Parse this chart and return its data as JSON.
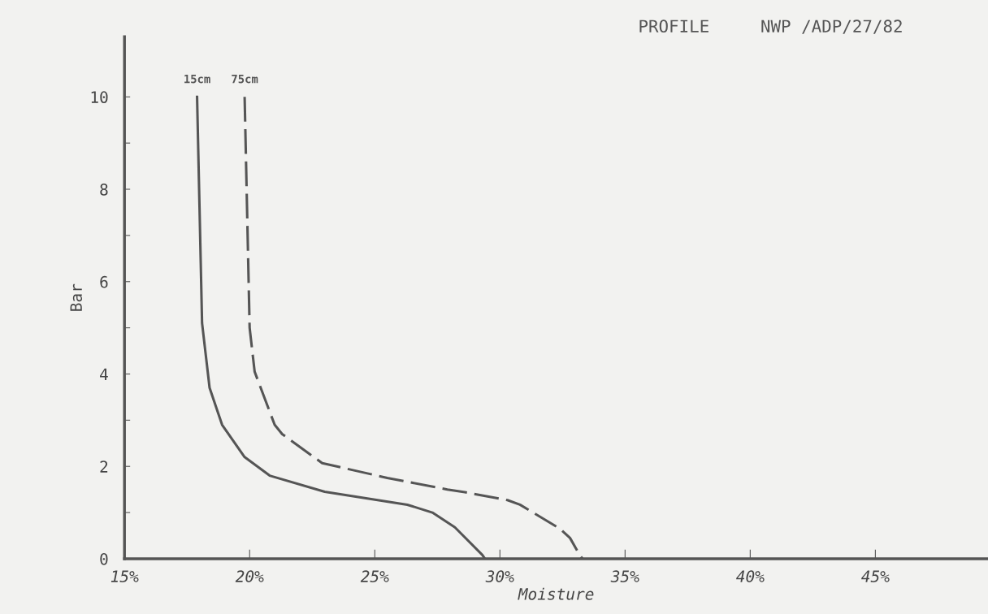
{
  "chart_data": {
    "type": "line",
    "title": "PROFILE     NWP /ADP/27/82",
    "xlabel": "Moisture",
    "ylabel": "Bar",
    "xlim": [
      15,
      49.5
    ],
    "ylim": [
      0,
      11.3
    ],
    "xticks": [
      {
        "value": 15,
        "label": "15%"
      },
      {
        "value": 20,
        "label": "20%"
      },
      {
        "value": 25,
        "label": "25%"
      },
      {
        "value": 30,
        "label": "30%"
      },
      {
        "value": 35,
        "label": "35%"
      },
      {
        "value": 40,
        "label": "40%"
      },
      {
        "value": 45,
        "label": "45%"
      }
    ],
    "yticks": [
      0,
      {
        "value": 1,
        "label": null
      },
      2,
      {
        "value": 3,
        "label": null
      },
      4,
      {
        "value": 5,
        "label": null
      },
      6,
      {
        "value": 7,
        "label": null
      },
      8,
      {
        "value": 9,
        "label": null
      },
      10
    ],
    "grid": false,
    "legend": false,
    "marker": "none",
    "series": [
      {
        "name": "15cm",
        "color": "#555555",
        "line_style": "solid",
        "x": [
          17.9,
          18.1,
          18.4,
          18.9,
          19.8,
          20.8,
          23.0,
          26.3,
          27.3,
          28.2,
          29.3,
          29.4
        ],
        "values": [
          10.0,
          5.1,
          3.7,
          2.9,
          2.2,
          1.8,
          1.45,
          1.17,
          1.0,
          0.68,
          0.08,
          0.0
        ]
      },
      {
        "name": "75cm",
        "color": "#555555",
        "line_style": "dashed",
        "x": [
          19.8,
          20.0,
          20.2,
          21.0,
          21.3,
          22.9,
          25.5,
          27.9,
          28.6,
          30.3,
          30.8,
          32.4,
          32.8,
          33.2,
          33.3
        ],
        "values": [
          10.0,
          5.0,
          4.05,
          2.9,
          2.7,
          2.07,
          1.75,
          1.5,
          1.44,
          1.27,
          1.17,
          0.65,
          0.45,
          0.07,
          0.0
        ]
      }
    ]
  }
}
